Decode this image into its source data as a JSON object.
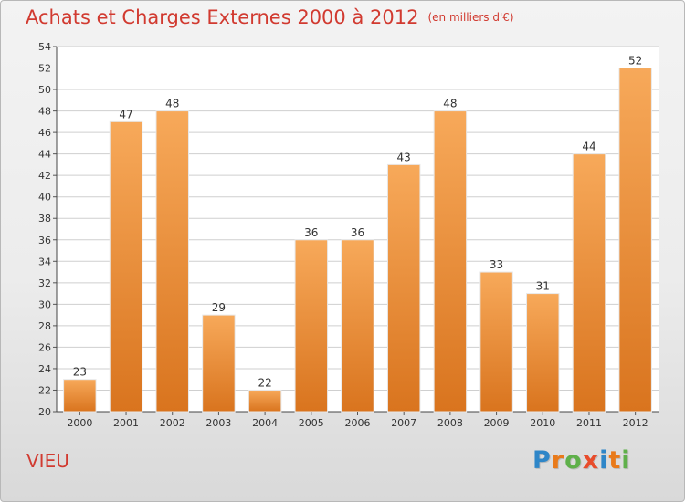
{
  "title": "Achats et Charges Externes 2000 à 2012",
  "subtitle": "(en milliers d'€)",
  "place": "VIEU",
  "logo": {
    "letters": [
      "P",
      "r",
      "o",
      "x",
      "i",
      "t",
      "i"
    ],
    "colors": [
      "#2e86c8",
      "#e97a1a",
      "#5fb04a",
      "#e84c2b",
      "#2e86c8",
      "#e97a1a",
      "#5fb04a"
    ]
  },
  "colors": {
    "bar_top": "#f7a95a",
    "bar_bottom": "#d9741e",
    "title": "#d13a30",
    "grid": "#cfcfcf"
  },
  "chart_data": {
    "type": "bar",
    "categories": [
      "2000",
      "2001",
      "2002",
      "2003",
      "2004",
      "2005",
      "2006",
      "2007",
      "2008",
      "2009",
      "2010",
      "2011",
      "2012"
    ],
    "values": [
      23,
      47,
      48,
      29,
      22,
      36,
      36,
      43,
      48,
      33,
      31,
      44,
      52
    ],
    "data_labels": [
      "23",
      "47",
      "48",
      "29",
      "22",
      "36",
      "36",
      "43",
      "48",
      "33",
      "31",
      "44",
      "52"
    ],
    "y_ticks": [
      "20",
      "22",
      "24",
      "26",
      "28",
      "30",
      "32",
      "34",
      "36",
      "38",
      "40",
      "42",
      "44",
      "46",
      "48",
      "50",
      "52",
      "54"
    ],
    "ylim": [
      20,
      54
    ],
    "grid": true
  }
}
